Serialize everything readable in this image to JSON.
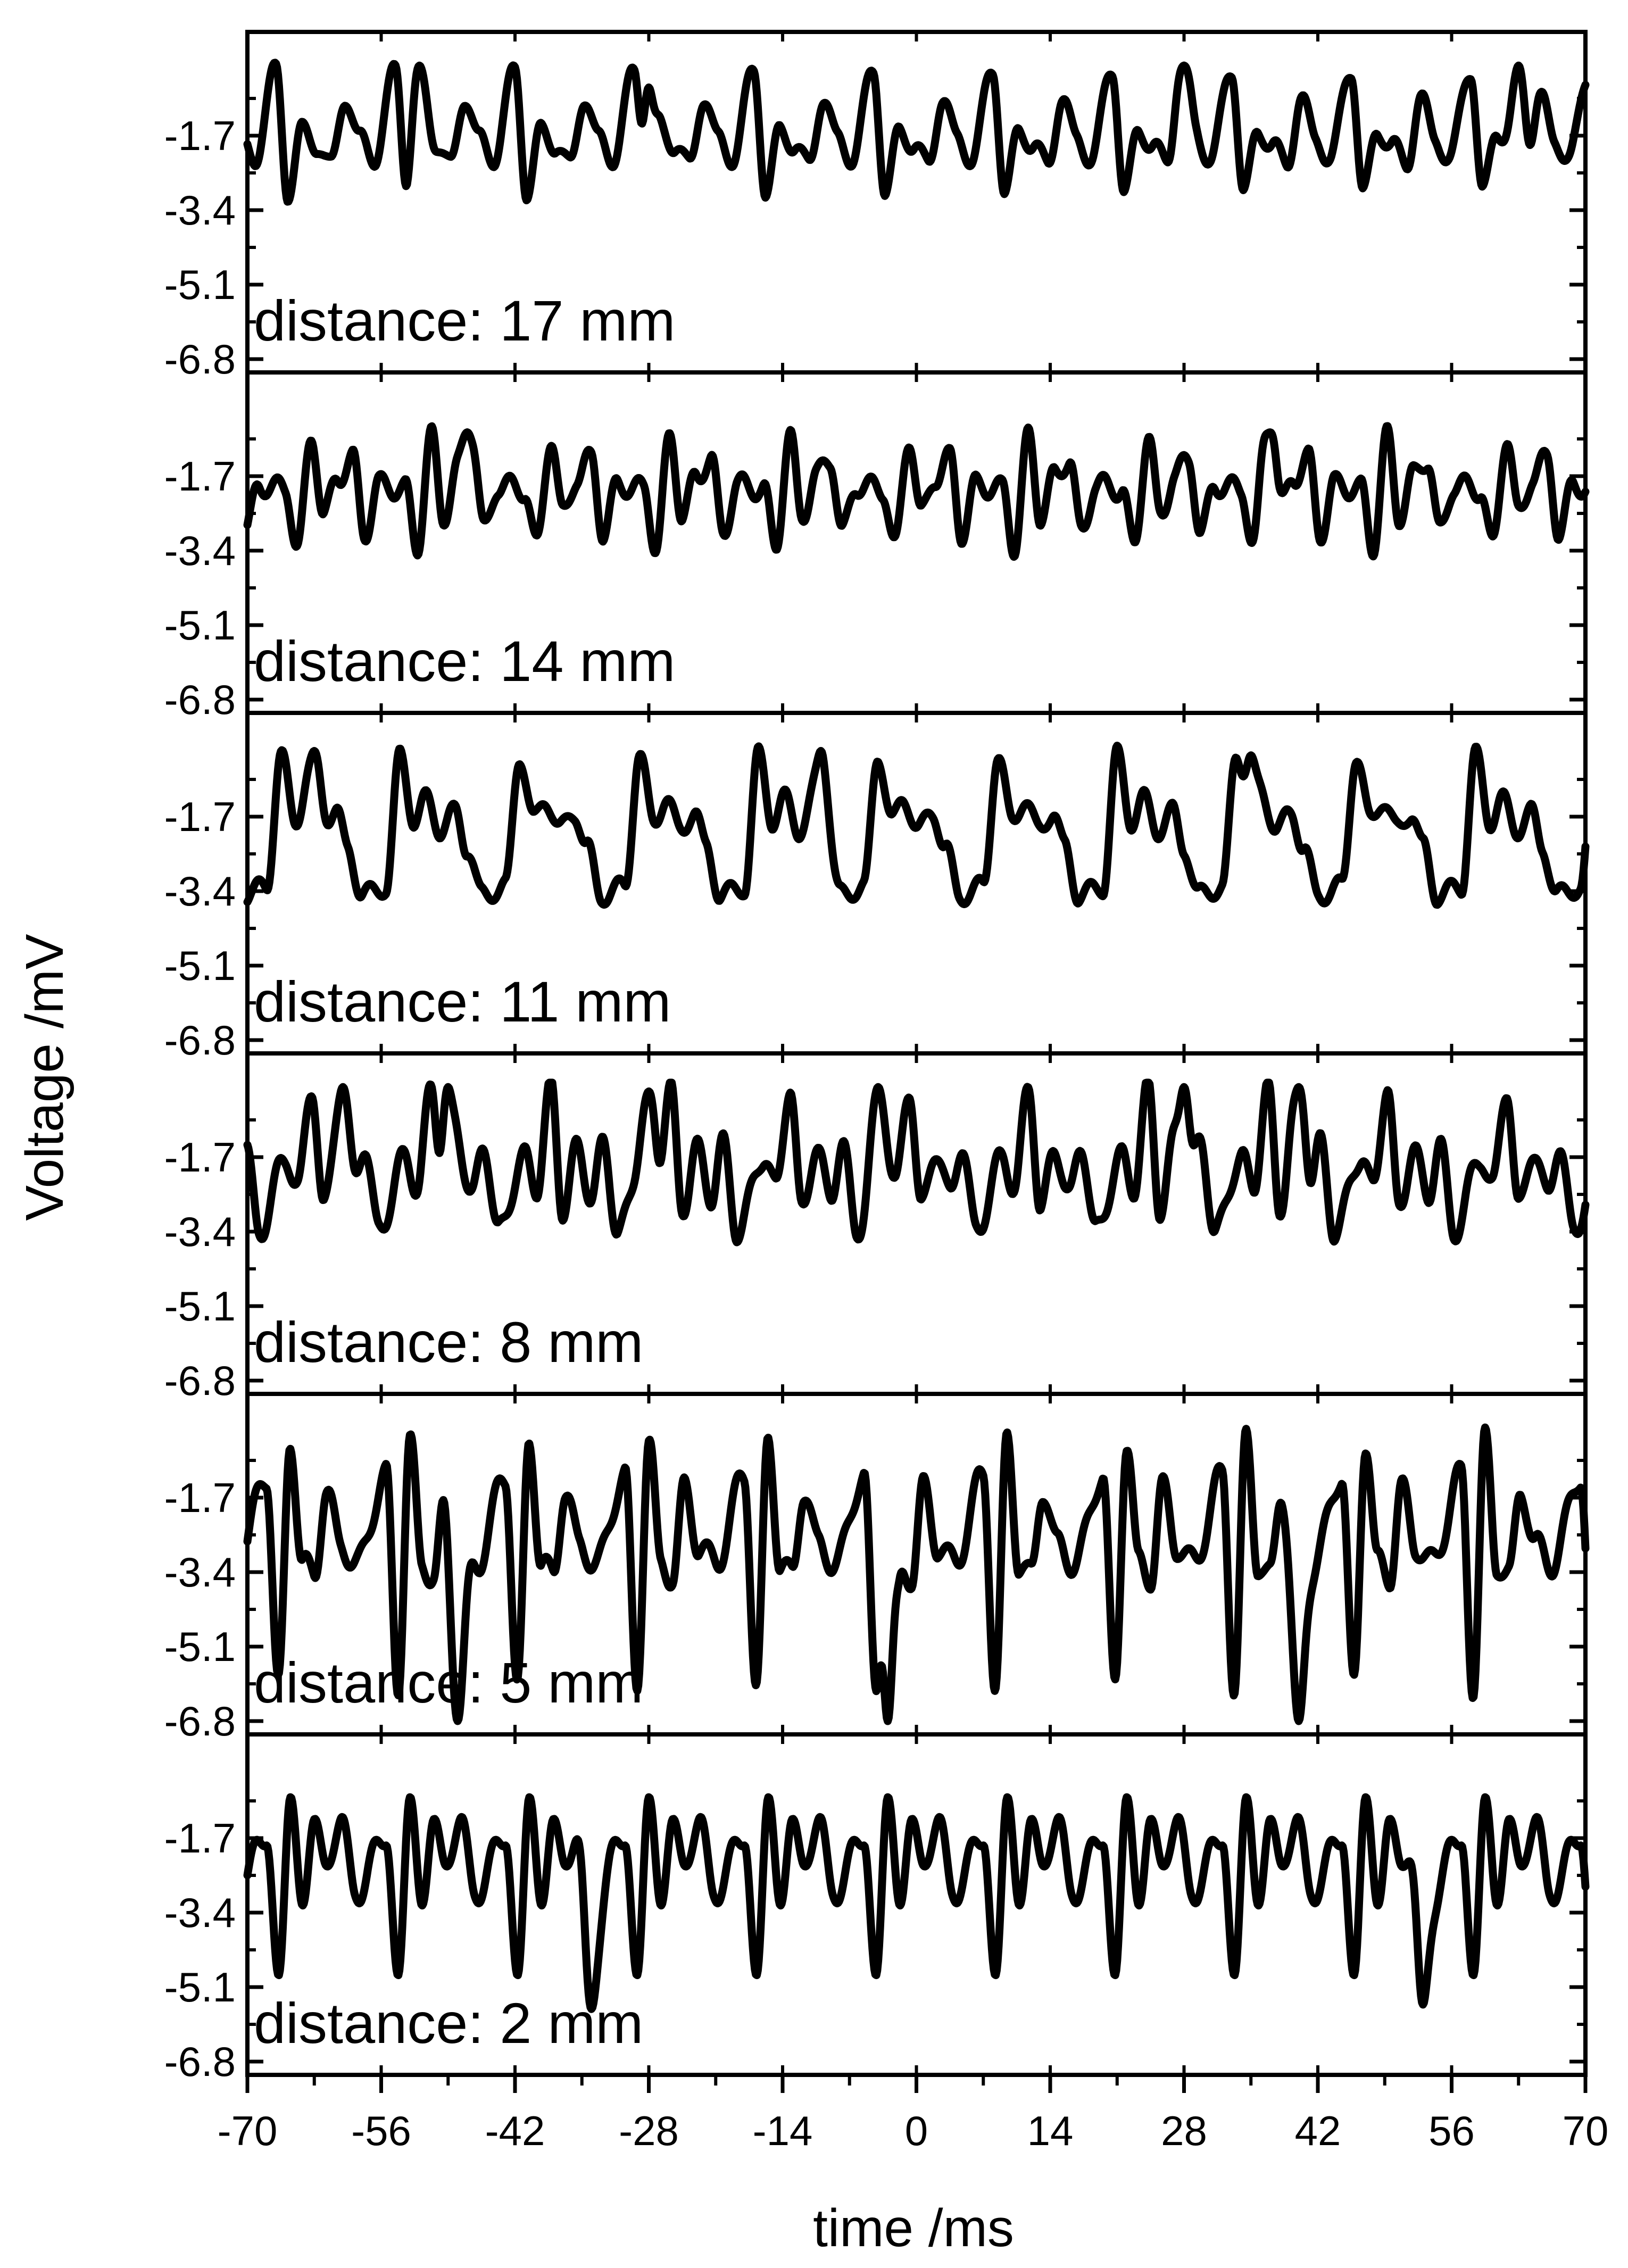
{
  "chart_data": {
    "type": "line",
    "xlabel": "time /ms",
    "ylabel": "Voltage /mV",
    "xlim": [
      -70,
      70
    ],
    "ylim": [
      -6.8,
      0
    ],
    "x_ticks": [
      "-70",
      "-56",
      "-42",
      "-28",
      "-14",
      "0",
      "14",
      "28",
      "42",
      "56",
      "70"
    ],
    "y_ticks": [
      "-1.7",
      "-3.4",
      "-5.1",
      "-6.8"
    ],
    "grid": false,
    "line_color": "#000000",
    "panels": [
      {
        "annotation": "distance: 17 mm",
        "period_ms": 12.5,
        "phase_ms": -67,
        "knots_t": [
          0.0,
          0.1,
          0.22,
          0.34,
          0.46,
          0.58,
          0.7,
          0.82,
          1.0
        ],
        "knots_v": [
          -0.2,
          -3.0,
          -1.6,
          -1.9,
          -2.4,
          -0.8,
          -1.8,
          -2.2,
          -0.2
        ],
        "extra_t": [
          -52,
          -28,
          28,
          63
        ],
        "extra_v": [
          -0.1,
          -0.6,
          -0.1,
          -0.1
        ],
        "fine_amp": 0.22,
        "fine_period_ms": 3.1
      },
      {
        "annotation": "distance: 14 mm",
        "period_ms": 12.5,
        "phase_ms": -66,
        "knots_t": [
          0.0,
          0.1,
          0.22,
          0.32,
          0.44,
          0.56,
          0.66,
          0.78,
          1.0
        ],
        "knots_v": [
          -2.0,
          -3.3,
          -0.8,
          -2.6,
          -1.7,
          -1.3,
          -3.0,
          -1.9,
          -2.0
        ],
        "extra_t": [
          -47,
          37
        ],
        "extra_v": [
          -0.7,
          -0.7
        ],
        "fine_amp": 0.25,
        "fine_period_ms": 2.7
      },
      {
        "annotation": "distance: 11 mm",
        "period_ms": 12.5,
        "phase_ms": -68,
        "knots_t": [
          0.0,
          0.12,
          0.24,
          0.34,
          0.46,
          0.58,
          0.68,
          0.8,
          1.0
        ],
        "knots_v": [
          -3.3,
          -0.3,
          -1.8,
          -1.3,
          -2.0,
          -1.6,
          -2.4,
          -3.5,
          -3.3
        ],
        "extra_t": [
          -63,
          -10,
          35
        ],
        "extra_v": [
          -0.2,
          -0.2,
          -0.3
        ],
        "fine_amp": 0.22,
        "fine_period_ms": 2.9
      },
      {
        "annotation": "distance: 8 mm",
        "period_ms": 12.5,
        "phase_ms": -66,
        "knots_t": [
          0.0,
          0.1,
          0.22,
          0.32,
          0.44,
          0.56,
          0.66,
          0.78,
          1.0
        ],
        "knots_v": [
          -1.7,
          -2.4,
          -0.1,
          -2.9,
          -1.5,
          -2.6,
          -1.4,
          -3.4,
          -1.7
        ],
        "extra_t": [
          -60,
          -49,
          -28,
          -4,
          28,
          40
        ],
        "extra_v": [
          -0.1,
          -0.1,
          -0.2,
          -0.1,
          -0.1,
          -0.1
        ],
        "fine_amp": 0.25,
        "fine_period_ms": 2.6
      },
      {
        "annotation": "distance: 5 mm",
        "period_ms": 12.5,
        "phase_ms": -68,
        "knots_t": [
          0.0,
          0.1,
          0.2,
          0.3,
          0.4,
          0.5,
          0.62,
          0.76,
          1.0
        ],
        "knots_v": [
          -1.2,
          -6.0,
          -0.4,
          -3.2,
          -3.5,
          -1.5,
          -2.8,
          -3.2,
          -1.2
        ],
        "extra_t": [
          -48,
          -3,
          40
        ],
        "extra_v": [
          -6.8,
          -6.8,
          -6.8
        ],
        "fine_amp": 0.3,
        "fine_period_ms": 2.8
      },
      {
        "annotation": "distance: 2 mm",
        "period_ms": 12.5,
        "phase_ms": -68,
        "knots_t": [
          0.0,
          0.1,
          0.2,
          0.3,
          0.4,
          0.5,
          0.62,
          0.74,
          1.0
        ],
        "knots_v": [
          -1.6,
          -5.1,
          -0.5,
          -3.5,
          -1.0,
          -2.6,
          -1.1,
          -3.0,
          -1.6
        ],
        "extra_t": [
          -34,
          53
        ],
        "extra_v": [
          -5.6,
          -5.5
        ],
        "fine_amp": 0.28,
        "fine_period_ms": 2.5
      }
    ]
  }
}
